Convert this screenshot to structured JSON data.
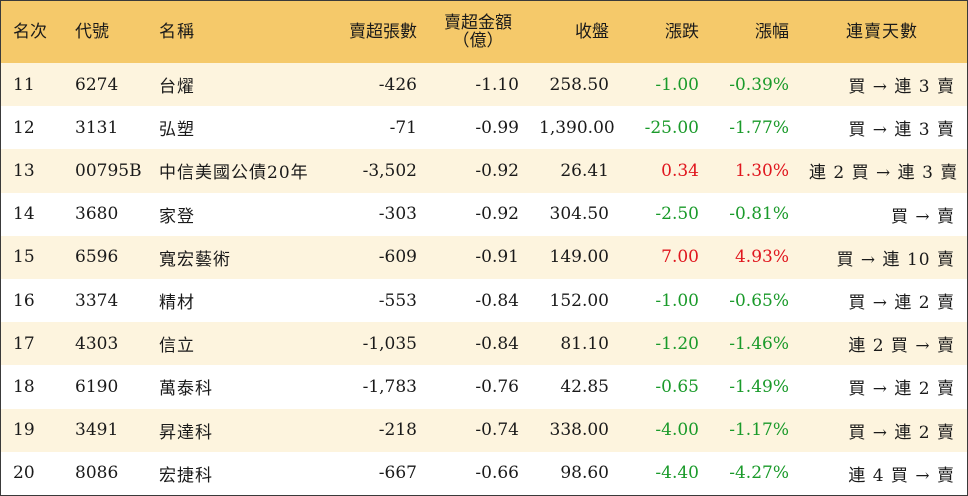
{
  "headers": {
    "rank": "名次",
    "code": "代號",
    "name": "名稱",
    "net_sell_lots": "賣超張數",
    "net_sell_amount_line1": "賣超金額",
    "net_sell_amount_line2": "（億）",
    "close": "收盤",
    "change": "漲跌",
    "change_pct": "漲幅",
    "streak": "連賣天數"
  },
  "colors": {
    "header_bg": "#f5c96a",
    "stripe_bg": "#fdf4de",
    "down": "#1a9a2a",
    "up": "#e0161e"
  },
  "rows": [
    {
      "rank": "11",
      "code": "6274",
      "name": "台燿",
      "lots": "-426",
      "amount": "-1.10",
      "close": "258.50",
      "change": "-1.00",
      "pct": "-0.39%",
      "streak": "買 → 連 3 賣",
      "dir": "neg"
    },
    {
      "rank": "12",
      "code": "3131",
      "name": "弘塑",
      "lots": "-71",
      "amount": "-0.99",
      "close": "1,390.00",
      "change": "-25.00",
      "pct": "-1.77%",
      "streak": "買 → 連 3 賣",
      "dir": "neg"
    },
    {
      "rank": "13",
      "code": "00795B",
      "name": "中信美國公債20年",
      "lots": "-3,502",
      "amount": "-0.92",
      "close": "26.41",
      "change": "0.34",
      "pct": "1.30%",
      "streak": "連 2 買 → 連 3 賣",
      "dir": "pos"
    },
    {
      "rank": "14",
      "code": "3680",
      "name": "家登",
      "lots": "-303",
      "amount": "-0.92",
      "close": "304.50",
      "change": "-2.50",
      "pct": "-0.81%",
      "streak": "買 → 賣",
      "dir": "neg"
    },
    {
      "rank": "15",
      "code": "6596",
      "name": "寬宏藝術",
      "lots": "-609",
      "amount": "-0.91",
      "close": "149.00",
      "change": "7.00",
      "pct": "4.93%",
      "streak": "買 → 連 10 賣",
      "dir": "pos"
    },
    {
      "rank": "16",
      "code": "3374",
      "name": "精材",
      "lots": "-553",
      "amount": "-0.84",
      "close": "152.00",
      "change": "-1.00",
      "pct": "-0.65%",
      "streak": "買 → 連 2 賣",
      "dir": "neg"
    },
    {
      "rank": "17",
      "code": "4303",
      "name": "信立",
      "lots": "-1,035",
      "amount": "-0.84",
      "close": "81.10",
      "change": "-1.20",
      "pct": "-1.46%",
      "streak": "連 2 買 → 賣",
      "dir": "neg"
    },
    {
      "rank": "18",
      "code": "6190",
      "name": "萬泰科",
      "lots": "-1,783",
      "amount": "-0.76",
      "close": "42.85",
      "change": "-0.65",
      "pct": "-1.49%",
      "streak": "買 → 連 2 賣",
      "dir": "neg"
    },
    {
      "rank": "19",
      "code": "3491",
      "name": "昇達科",
      "lots": "-218",
      "amount": "-0.74",
      "close": "338.00",
      "change": "-4.00",
      "pct": "-1.17%",
      "streak": "買 → 連 2 賣",
      "dir": "neg"
    },
    {
      "rank": "20",
      "code": "8086",
      "name": "宏捷科",
      "lots": "-667",
      "amount": "-0.66",
      "close": "98.60",
      "change": "-4.40",
      "pct": "-4.27%",
      "streak": "連 4 買 → 賣",
      "dir": "neg"
    }
  ]
}
